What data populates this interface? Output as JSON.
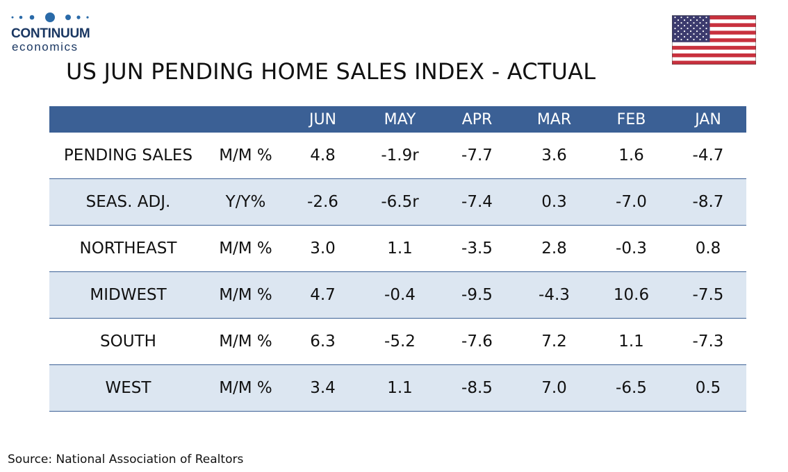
{
  "brand": {
    "name": "CONTINUUM",
    "sub": "economics",
    "colors": {
      "navy": "#1a3762",
      "dots": "#2a6aa8"
    }
  },
  "flag_icon": "us-flag-icon",
  "chart_data": {
    "type": "table",
    "title": "US JUN PENDING HOME SALES INDEX - ACTUAL",
    "columns": [
      "JUN",
      "MAY",
      "APR",
      "MAR",
      "FEB",
      "JAN"
    ],
    "rows": [
      {
        "label": "PENDING SALES",
        "unit": "M/M %",
        "values": [
          "4.8",
          "-1.9r",
          "-7.7",
          "3.6",
          "1.6",
          "-4.7"
        ]
      },
      {
        "label": "SEAS. ADJ.",
        "unit": "Y/Y%",
        "values": [
          "-2.6",
          "-6.5r",
          "-7.4",
          "0.3",
          "-7.0",
          "-8.7"
        ]
      },
      {
        "label": "NORTHEAST",
        "unit": "M/M %",
        "values": [
          "3.0",
          "1.1",
          "-3.5",
          "2.8",
          "-0.3",
          "0.8"
        ]
      },
      {
        "label": "MIDWEST",
        "unit": "M/M %",
        "values": [
          "4.7",
          "-0.4",
          "-9.5",
          "-4.3",
          "10.6",
          "-7.5"
        ]
      },
      {
        "label": "SOUTH",
        "unit": "M/M %",
        "values": [
          "6.3",
          "-5.2",
          "-7.6",
          "7.2",
          "1.1",
          "-7.3"
        ]
      },
      {
        "label": "WEST",
        "unit": "M/M %",
        "values": [
          "3.4",
          "1.1",
          "-8.5",
          "7.0",
          "-6.5",
          "0.5"
        ]
      }
    ],
    "colors": {
      "header": "#3b6095",
      "band": "#dce6f1"
    }
  },
  "source": "Source: National Association of Realtors"
}
